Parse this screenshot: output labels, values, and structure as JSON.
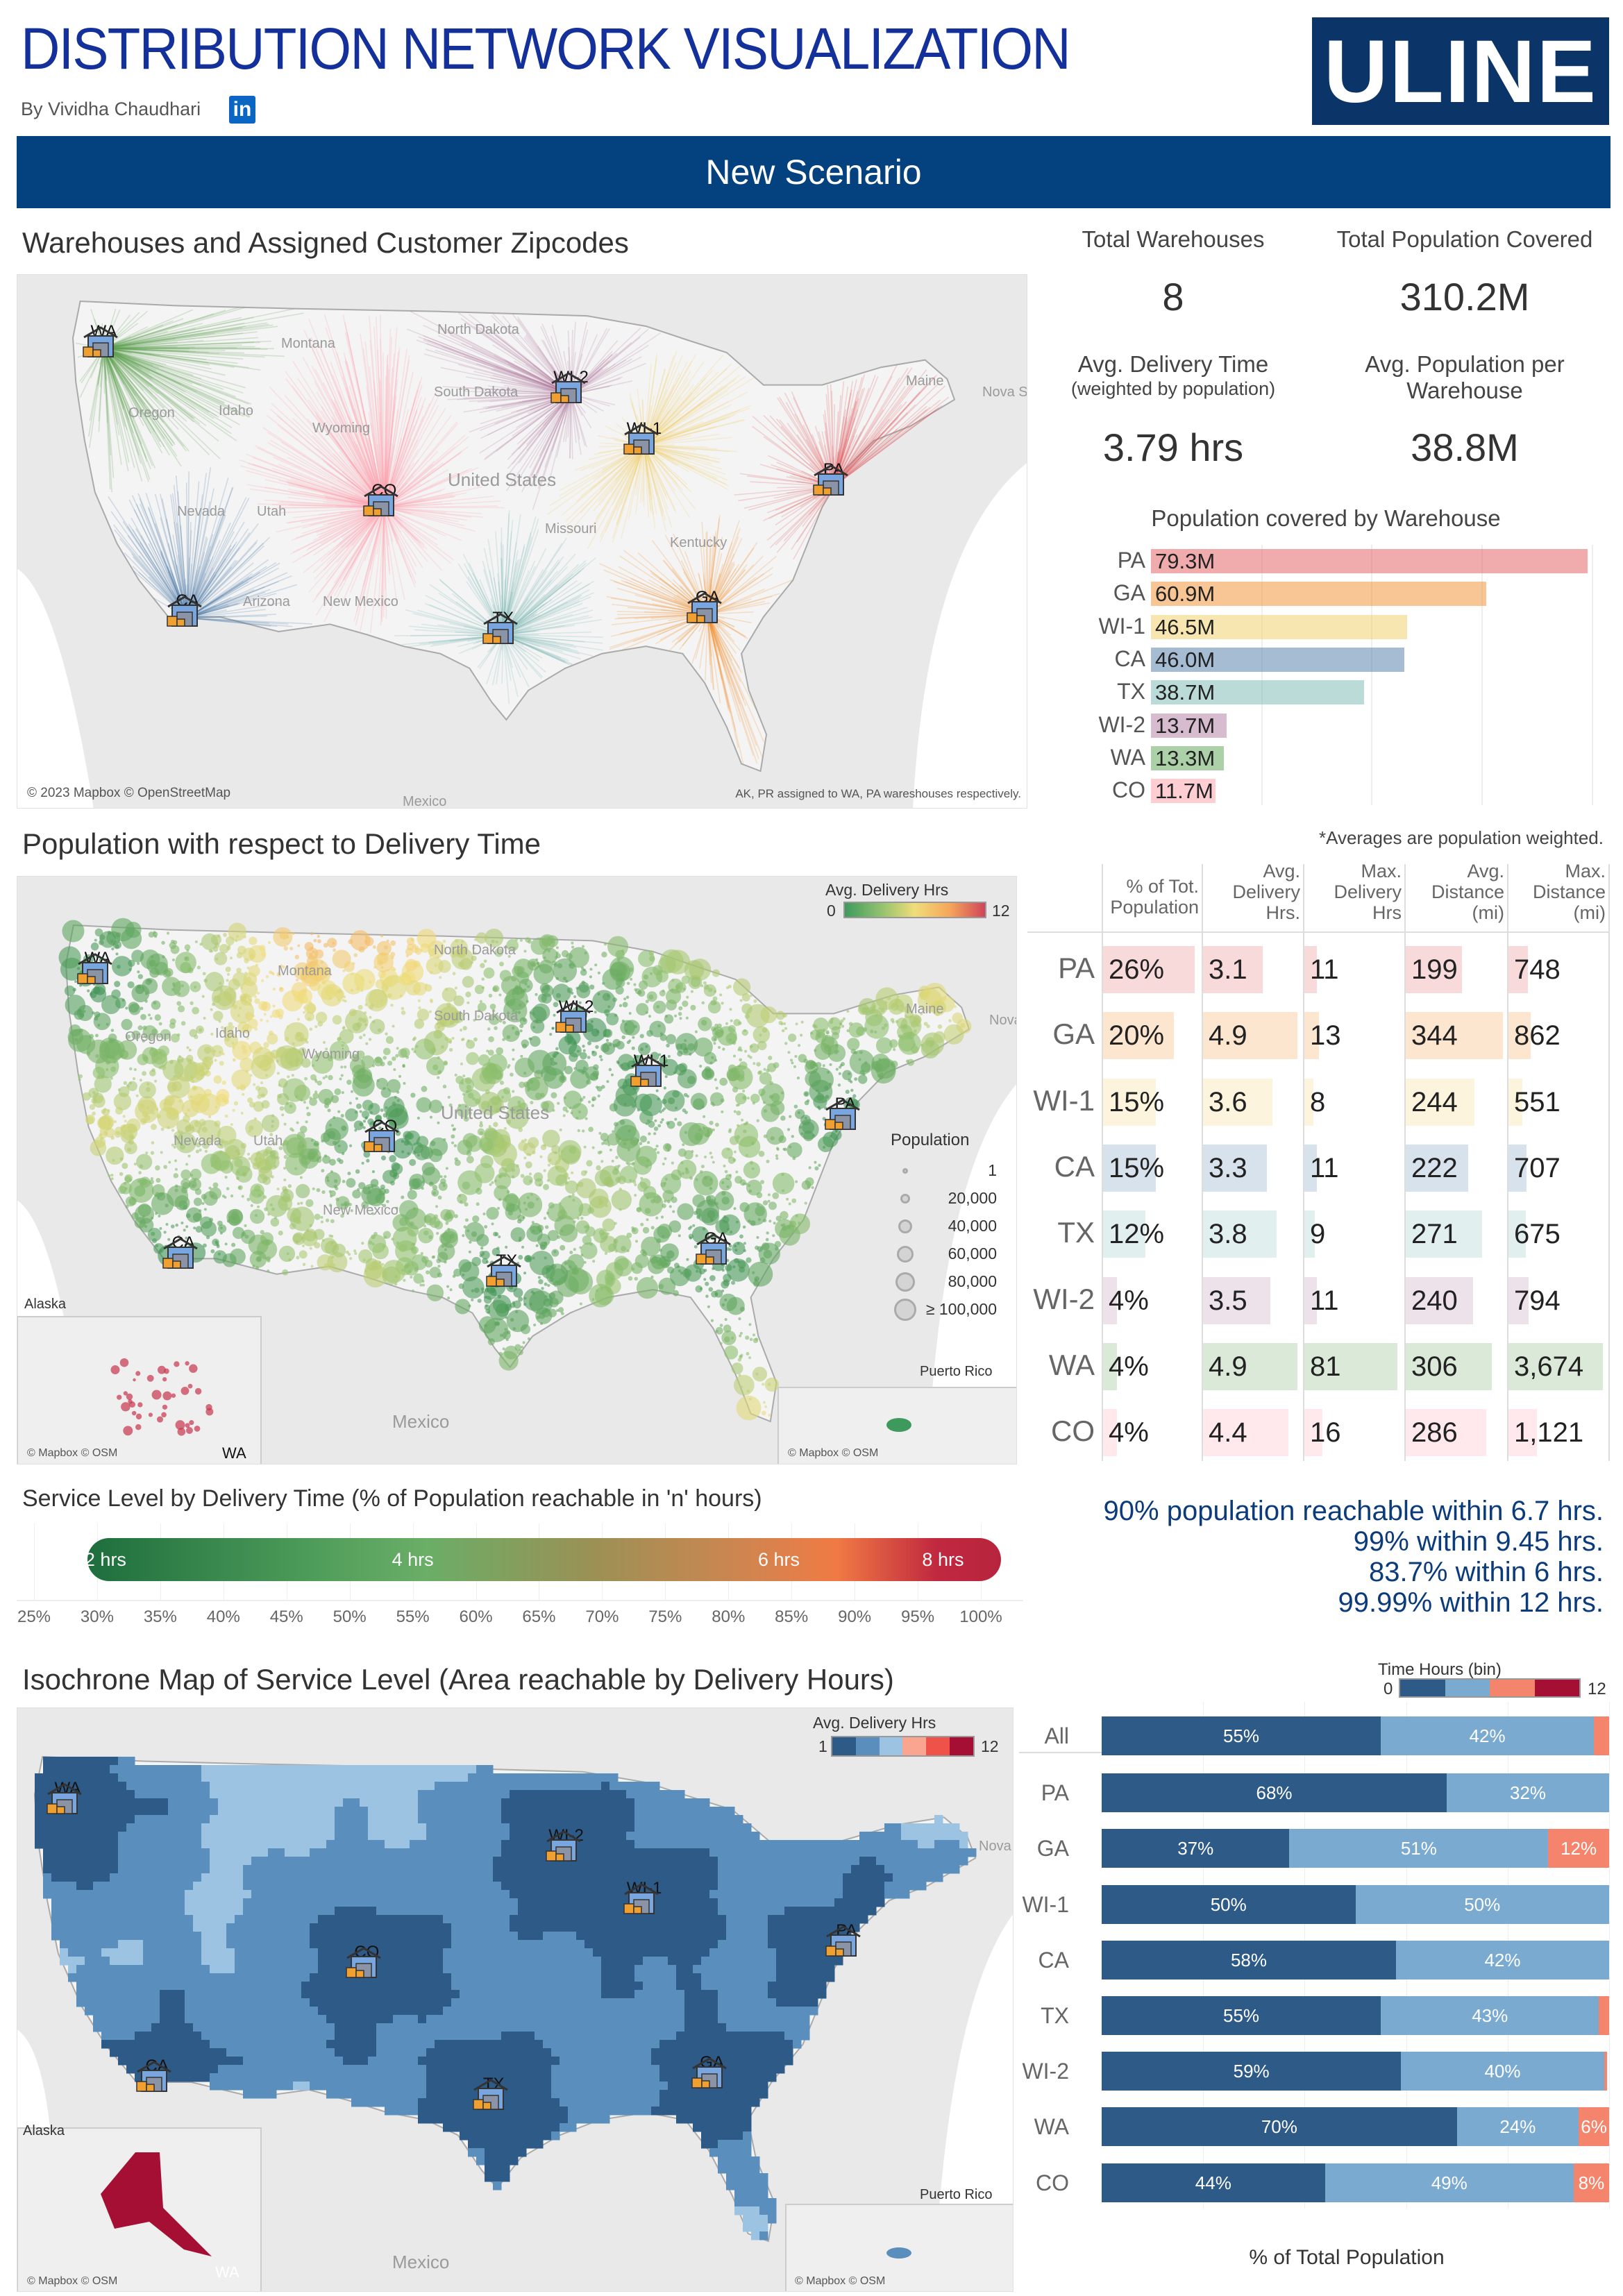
{
  "header": {
    "title": "DISTRIBUTION NETWORK VISUALIZATION",
    "byline": "By Vividha Chaudhari",
    "linkedin": "in",
    "logo": "ULINE",
    "scenario": "New Scenario"
  },
  "colors": {
    "brand": "#0b3468",
    "banner": "#03417f",
    "title": "#14309a",
    "warehouse": {
      "PA": "#e15759",
      "GA": "#f28e2b",
      "WI-1": "#f1ce63",
      "CA": "#4e79a7",
      "TX": "#76b7b2",
      "WI-2": "#b07aa1",
      "WA": "#59a14f",
      "CO": "#ff9da7"
    },
    "time_bins": [
      "#2d5a87",
      "#7aaad0",
      "#f4846c",
      "#a50f34"
    ],
    "iso_bins": [
      "#2d5a87",
      "#5a8ebd",
      "#9cc4e2",
      "#f9a58f",
      "#ee5248",
      "#a50f34"
    ]
  },
  "section1": {
    "title": "Warehouses and Assigned Customer Zipcodes",
    "attribution": "© 2023 Mapbox © OpenStreetMap",
    "note": "AK, PR assigned to WA, PA wareshouses respectively.",
    "labels": [
      "Montana",
      "North Dakota",
      "South Dakota",
      "Idaho",
      "Oregon",
      "Wyoming",
      "Nevada",
      "Utah",
      "United States",
      "Arizona",
      "New Mexico",
      "Missouri",
      "Kentucky",
      "Maine",
      "Nova S",
      "Mexico"
    ]
  },
  "kpis": {
    "total_warehouses_label": "Total Warehouses",
    "total_warehouses": "8",
    "total_pop_label": "Total Population Covered",
    "total_pop": "310.2M",
    "avg_time_label": "Avg. Delivery Time",
    "avg_time_sub": "(weighted by population)",
    "avg_time": "3.79 hrs",
    "avg_pop_label": "Avg. Population per Warehouse",
    "avg_pop": "38.8M"
  },
  "section2": {
    "title": "Population with respect to Delivery Time",
    "note": "*Averages are population weighted.",
    "legend_title": "Avg. Delivery Hrs",
    "legend_min": "0",
    "legend_max": "12",
    "pop_legend_title": "Population",
    "pop_legend": [
      "1",
      "20,000",
      "40,000",
      "60,000",
      "80,000",
      "≥ 100,000"
    ],
    "labels": [
      "Montana",
      "North Dakota",
      "South Dakota",
      "Idaho",
      "Oregon",
      "Wyoming",
      "Nevada",
      "Utah",
      "United States",
      "New Mexico",
      "Maine",
      "Nova"
    ],
    "alaska": "Alaska",
    "puerto_rico": "Puerto Rico",
    "mexico": "Mexico",
    "alaska_wh": "WA",
    "attr_left": "© Mapbox © OSM",
    "attr_right": "© Mapbox © OSM"
  },
  "section3": {
    "title": "Service Level by Delivery Time (% of Population reachable in 'n' hours)",
    "insights": [
      "90% population reachable within 6.7 hrs.",
      "99% within 9.45 hrs.",
      "83.7% within 6 hrs.",
      "99.99% within 12 hrs."
    ]
  },
  "section4": {
    "title": "Isochrone Map of Service Level (Area reachable by Delivery Hours)",
    "legend_title": "Avg. Delivery Hrs",
    "legend_min": "1",
    "legend_max": "12",
    "alaska": "Alaska",
    "puerto_rico": "Puerto Rico",
    "mexico": "Mexico",
    "nova": "Nova",
    "alaska_wh": "WA",
    "attr_left": "© Mapbox © OSM",
    "attr_right": "© Mapbox © OSM",
    "bin_legend_title": "Time Hours (bin)",
    "bin_min": "0",
    "bin_max": "12"
  },
  "chart_data": [
    {
      "type": "bar",
      "title": "Population covered by Warehouse",
      "categories": [
        "PA",
        "GA",
        "WI-1",
        "CA",
        "TX",
        "WI-2",
        "WA",
        "CO"
      ],
      "values": [
        79.3,
        60.9,
        46.5,
        46.0,
        38.7,
        13.7,
        13.3,
        11.7
      ],
      "labels": [
        "79.3M",
        "60.9M",
        "46.5M",
        "46.0M",
        "38.7M",
        "13.7M",
        "13.3M",
        "11.7M"
      ],
      "unit": "M",
      "orientation": "horizontal"
    },
    {
      "type": "table",
      "columns": [
        "% of Tot. Population",
        "Avg. Delivery Hrs.",
        "Max. Delivery Hrs",
        "Avg. Distance (mi)",
        "Max. Distance (mi)"
      ],
      "rows": [
        {
          "label": "PA",
          "values": [
            "26%",
            "3.1",
            "11",
            "199",
            "748"
          ],
          "num": [
            26,
            3.1,
            11,
            199,
            748
          ]
        },
        {
          "label": "GA",
          "values": [
            "20%",
            "4.9",
            "13",
            "344",
            "862"
          ],
          "num": [
            20,
            4.9,
            13,
            344,
            862
          ]
        },
        {
          "label": "WI-1",
          "values": [
            "15%",
            "3.6",
            "8",
            "244",
            "551"
          ],
          "num": [
            15,
            3.6,
            8,
            244,
            551
          ]
        },
        {
          "label": "CA",
          "values": [
            "15%",
            "3.3",
            "11",
            "222",
            "707"
          ],
          "num": [
            15,
            3.3,
            11,
            222,
            707
          ]
        },
        {
          "label": "TX",
          "values": [
            "12%",
            "3.8",
            "9",
            "271",
            "675"
          ],
          "num": [
            12,
            3.8,
            9,
            271,
            675
          ]
        },
        {
          "label": "WI-2",
          "values": [
            "4%",
            "3.5",
            "11",
            "240",
            "794"
          ],
          "num": [
            4,
            3.5,
            11,
            240,
            794
          ]
        },
        {
          "label": "WA",
          "values": [
            "4%",
            "4.9",
            "81",
            "306",
            "3,674"
          ],
          "num": [
            4,
            4.9,
            81,
            306,
            3674
          ]
        },
        {
          "label": "CO",
          "values": [
            "4%",
            "4.4",
            "16",
            "286",
            "1,121"
          ],
          "num": [
            4,
            4.4,
            16,
            286,
            1121
          ]
        }
      ]
    },
    {
      "type": "bar",
      "title": "Service Level by Delivery Time (% of Population reachable in 'n' hours)",
      "xlim": [
        25,
        100
      ],
      "ticks": [
        "25%",
        "30%",
        "35%",
        "40%",
        "45%",
        "50%",
        "55%",
        "60%",
        "65%",
        "70%",
        "75%",
        "80%",
        "85%",
        "90%",
        "95%",
        "100%"
      ],
      "markers": [
        {
          "label": "2 hrs",
          "pct": 30
        },
        {
          "label": "4 hrs",
          "pct": 55
        },
        {
          "label": "6 hrs",
          "pct": 84
        },
        {
          "label": "8 hrs",
          "pct": 97
        }
      ]
    },
    {
      "type": "bar",
      "stacked": true,
      "xlabel": "% of Total Population",
      "legend_title": "Time Hours (bin)",
      "categories": [
        "All",
        "PA",
        "GA",
        "WI-1",
        "CA",
        "TX",
        "WI-2",
        "WA",
        "CO"
      ],
      "series": [
        {
          "values": [
            55,
            68,
            37,
            50,
            58,
            55,
            59,
            70,
            44
          ],
          "labels": [
            "55%",
            "68%",
            "37%",
            "50%",
            "58%",
            "55%",
            "59%",
            "70%",
            "44%"
          ]
        },
        {
          "values": [
            42,
            32,
            51,
            50,
            42,
            43,
            40,
            24,
            49
          ],
          "labels": [
            "42%",
            "32%",
            "51%",
            "50%",
            "42%",
            "43%",
            "40%",
            "24%",
            "49%"
          ]
        },
        {
          "values": [
            3,
            0.2,
            12,
            0,
            0.8,
            2.4,
            0.6,
            6,
            8
          ],
          "labels": [
            "",
            "",
            "12%",
            "",
            "",
            "",
            "",
            "6%",
            "8%"
          ]
        },
        {
          "values": [
            0,
            0,
            0,
            0,
            0,
            0,
            0,
            0,
            0
          ],
          "labels": [
            "",
            "",
            "",
            "",
            "",
            "",
            "",
            "",
            ""
          ]
        }
      ]
    }
  ]
}
